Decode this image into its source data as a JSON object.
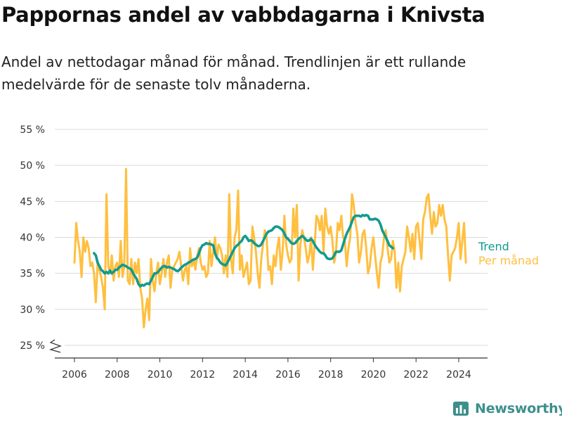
{
  "header": {
    "title": "Pappornas andel av vabbdagarna i Knivsta",
    "subtitle": "Andel av nettodagar månad för månad. Trendlinjen är ett rullande medelvärde för de senaste tolv månaderna."
  },
  "brand": {
    "name": "Newsworthy",
    "icon": "bar-chart-logo-icon",
    "color": "#3d8f8c"
  },
  "colors": {
    "monthly": "#ffbf3f",
    "trend": "#129b8e",
    "grid": "#d9d9d9",
    "axis": "#333333"
  },
  "chart_data": {
    "type": "line",
    "title": "Pappornas andel av vabbdagarna i Knivsta",
    "ylabel": "",
    "xlabel": "",
    "ylim": [
      25,
      55
    ],
    "y_ticks": [
      25,
      30,
      35,
      40,
      45,
      50,
      55
    ],
    "y_tick_labels": [
      "25 %",
      "30 %",
      "35 %",
      "40 %",
      "45 %",
      "50 %",
      "55 %"
    ],
    "x_ticks": [
      2006,
      2008,
      2010,
      2012,
      2014,
      2016,
      2018,
      2020,
      2022,
      2024
    ],
    "x_tick_labels": [
      "2006",
      "2008",
      "2010",
      "2012",
      "2014",
      "2016",
      "2018",
      "2020",
      "2022",
      "2024"
    ],
    "xlim": [
      2006,
      2024.8
    ],
    "grid": true,
    "broken_axis": true,
    "legend_position": "right-end",
    "series": [
      {
        "name": "Per månad",
        "start": 2006.0,
        "step_months": 1,
        "values": [
          36.5,
          42.0,
          39.5,
          38.0,
          34.5,
          40.0,
          38.0,
          39.5,
          38.5,
          36.0,
          36.5,
          35.0,
          31.0,
          36.5,
          35.5,
          34.5,
          33.0,
          30.0,
          46.0,
          36.0,
          35.0,
          37.5,
          34.0,
          36.0,
          36.5,
          34.5,
          39.5,
          34.5,
          36.0,
          49.5,
          34.0,
          33.5,
          37.0,
          33.5,
          36.5,
          35.0,
          37.0,
          33.0,
          31.5,
          27.5,
          30.0,
          31.5,
          28.5,
          37.0,
          34.0,
          32.5,
          35.0,
          36.5,
          33.5,
          35.0,
          37.0,
          34.5,
          36.5,
          37.5,
          33.0,
          35.5,
          36.0,
          36.5,
          37.0,
          38.0,
          36.0,
          34.0,
          35.5,
          36.0,
          33.5,
          38.5,
          36.0,
          37.0,
          35.5,
          37.5,
          38.5,
          36.5,
          35.5,
          36.0,
          34.5,
          35.0,
          39.5,
          36.0,
          38.0,
          40.0,
          37.0,
          39.0,
          38.5,
          37.5,
          35.0,
          37.5,
          34.5,
          46.0,
          37.0,
          35.0,
          40.0,
          41.0,
          46.5,
          35.5,
          37.5,
          34.5,
          35.5,
          36.5,
          33.5,
          34.0,
          41.5,
          40.0,
          38.0,
          35.0,
          33.0,
          37.0,
          39.0,
          41.0,
          40.0,
          35.5,
          36.0,
          33.5,
          37.5,
          36.0,
          38.5,
          40.0,
          35.5,
          38.0,
          43.0,
          39.0,
          37.5,
          36.5,
          37.0,
          44.0,
          40.0,
          44.5,
          34.0,
          39.0,
          41.0,
          40.0,
          38.5,
          36.5,
          37.5,
          40.0,
          35.5,
          39.0,
          43.0,
          42.5,
          41.0,
          43.0,
          38.0,
          44.0,
          41.5,
          40.5,
          41.5,
          39.5,
          36.5,
          38.0,
          42.0,
          41.0,
          43.0,
          40.0,
          39.5,
          36.0,
          38.5,
          40.0,
          46.0,
          44.5,
          42.0,
          40.5,
          36.5,
          38.0,
          40.5,
          41.0,
          38.5,
          35.0,
          36.0,
          38.5,
          40.0,
          37.5,
          35.0,
          33.0,
          36.5,
          37.5,
          40.0,
          41.0,
          38.5,
          36.5,
          37.0,
          39.5,
          38.0,
          33.0,
          36.5,
          32.5,
          36.0,
          37.0,
          38.0,
          41.5,
          40.0,
          38.0,
          40.5,
          37.0,
          41.5,
          42.0,
          39.5,
          37.0,
          42.5,
          43.5,
          45.5,
          46.0,
          43.0,
          40.5,
          43.5,
          41.5,
          42.0,
          44.5,
          43.0,
          44.5,
          42.5,
          41.5,
          37.5,
          34.0,
          37.5,
          38.0,
          38.5,
          40.0,
          42.0,
          37.0,
          39.5,
          42.0,
          36.5
        ]
      },
      {
        "name": "Trend",
        "start": 2006.9167,
        "step_months": 1,
        "values": [
          37.8,
          37.5,
          36.5,
          36.0,
          35.5,
          35.3,
          35.0,
          35.2,
          35.0,
          35.4,
          35.0,
          35.2,
          35.5,
          35.5,
          35.8,
          36.0,
          36.2,
          36.1,
          36.0,
          35.8,
          35.7,
          35.5,
          35.0,
          34.6,
          34.2,
          33.5,
          33.2,
          33.4,
          33.3,
          33.5,
          33.6,
          33.5,
          34.0,
          34.5,
          35.0,
          35.0,
          35.2,
          35.5,
          35.8,
          36.0,
          36.0,
          35.8,
          35.9,
          35.8,
          35.7,
          35.6,
          35.4,
          35.3,
          35.5,
          35.8,
          36.0,
          36.2,
          36.3,
          36.5,
          36.6,
          36.8,
          36.9,
          37.0,
          37.2,
          37.8,
          38.5,
          38.9,
          39.0,
          39.2,
          39.1,
          39.1,
          39.0,
          38.9,
          37.8,
          37.2,
          36.9,
          36.5,
          36.3,
          36.2,
          36.1,
          36.5,
          37.0,
          37.5,
          38.0,
          38.5,
          38.8,
          39.0,
          39.3,
          39.5,
          40.0,
          40.2,
          39.9,
          39.5,
          39.6,
          39.5,
          39.2,
          39.0,
          38.8,
          38.8,
          39.0,
          39.5,
          40.0,
          40.5,
          40.8,
          40.9,
          41.0,
          41.3,
          41.5,
          41.5,
          41.4,
          41.2,
          41.0,
          40.5,
          40.0,
          39.8,
          39.5,
          39.2,
          39.1,
          39.2,
          39.5,
          39.8,
          40.0,
          40.2,
          40.0,
          39.7,
          39.5,
          39.6,
          39.8,
          39.5,
          39.0,
          38.6,
          38.3,
          38.0,
          37.8,
          37.8,
          37.5,
          37.1,
          37.0,
          37.0,
          37.1,
          37.5,
          38.0,
          38.0,
          38.0,
          38.2,
          39.0,
          39.8,
          40.5,
          41.0,
          41.5,
          42.2,
          42.8,
          43.0,
          43.0,
          43.0,
          42.9,
          43.1,
          43.0,
          43.1,
          43.0,
          42.5,
          42.5,
          42.5,
          42.6,
          42.5,
          42.3,
          41.8,
          41.0,
          40.5,
          40.0,
          39.5,
          38.9,
          38.7,
          38.5
        ]
      }
    ],
    "legend": [
      {
        "name": "Trend",
        "color": "#129b8e"
      },
      {
        "name": "Per månad",
        "color": "#ffbf3f"
      }
    ]
  }
}
